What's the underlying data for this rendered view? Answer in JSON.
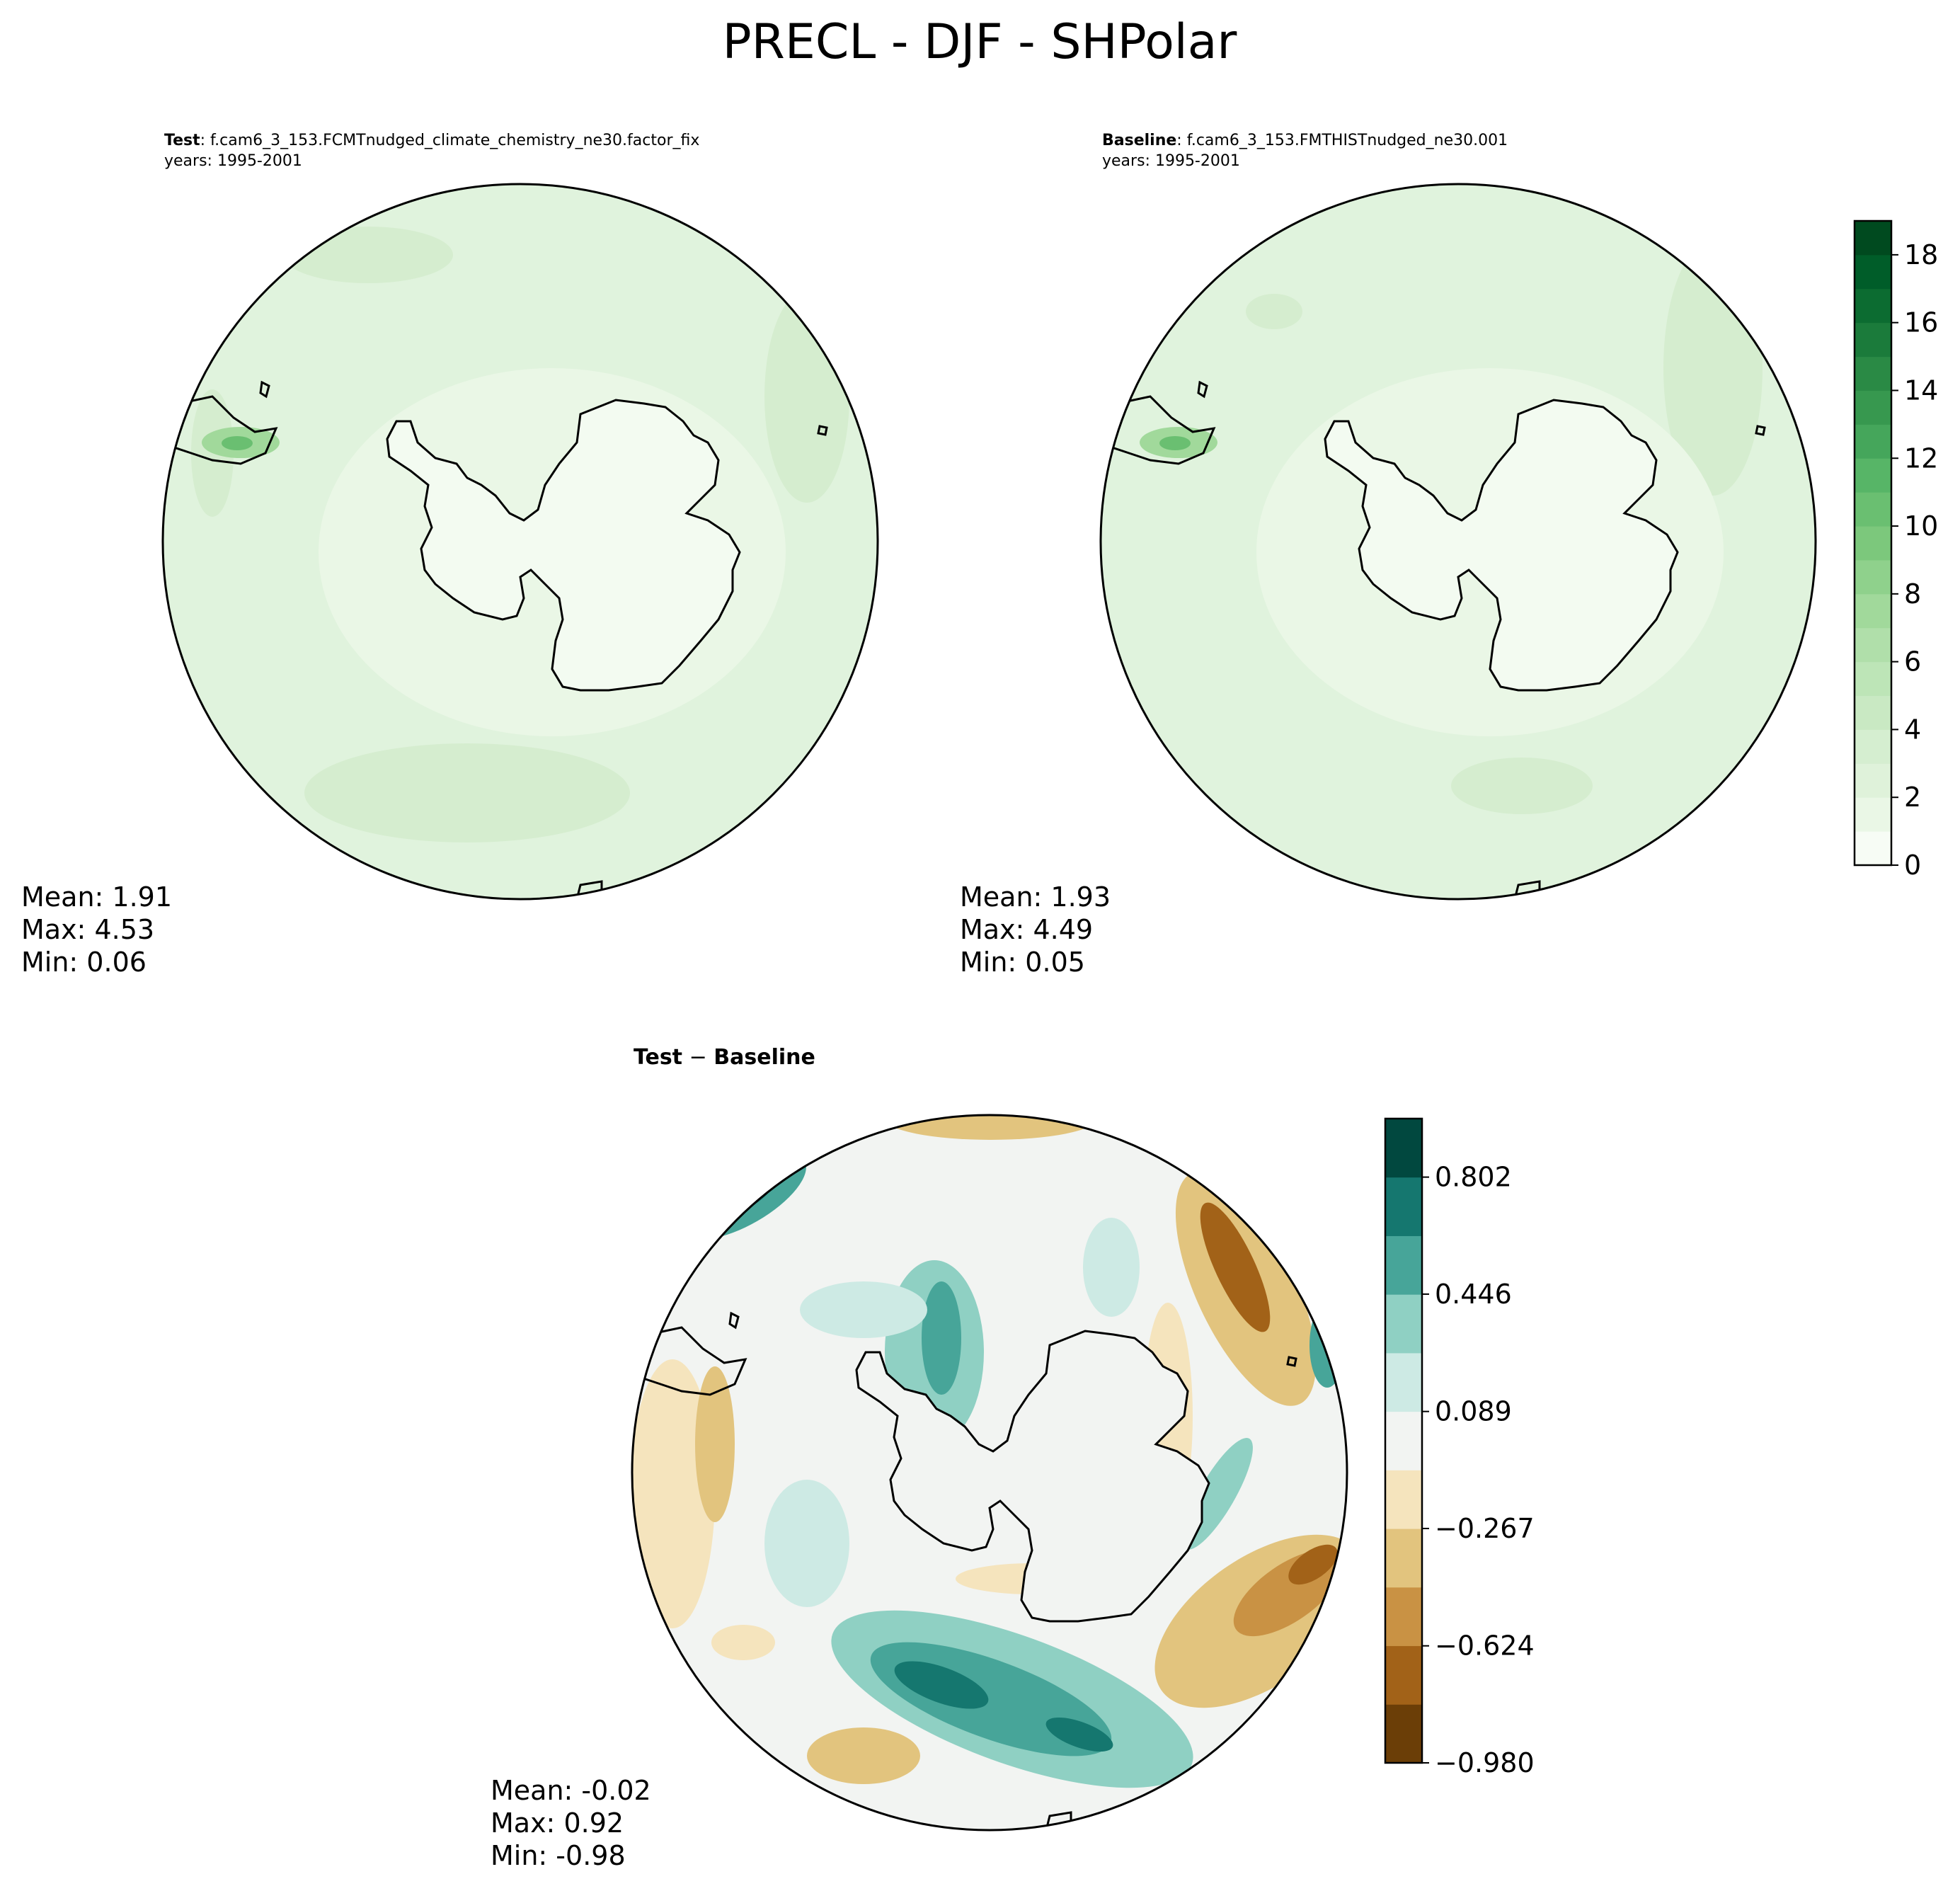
{
  "figure_title": "PRECL - DJF - SHPolar",
  "panels": {
    "test": {
      "label": "Test",
      "case": ": f.cam6_3_153.FCMTnudged_climate_chemistry_ne30.factor_fix",
      "years": "years: 1995-2001",
      "stats": {
        "mean": "Mean:  1.91",
        "max": "Max:  4.53",
        "min": "Min:  0.06"
      }
    },
    "baseline": {
      "label": "Baseline",
      "case": ": f.cam6_3_153.FMTHISTnudged_ne30.001",
      "years": "years: 1995-2001",
      "stats": {
        "mean": "Mean:  1.93",
        "max": "Max:  4.49",
        "min": "Min:  0.05"
      }
    },
    "diff": {
      "label_a": "Test",
      "label_sep": " − ",
      "label_b": "Baseline",
      "stats": {
        "mean": "Mean: -0.02",
        "max": "Max:  0.92",
        "min": "Min: -0.98"
      }
    }
  },
  "chart_data": [
    {
      "type": "heatmap",
      "title": "Test: f.cam6_3_153.FCMTnudged_climate_chemistry_ne30.factor_fix",
      "projection": "south-polar stereographic",
      "colormap": "Greens",
      "colorbar": {
        "range": [
          0,
          19
        ],
        "ticks": [
          "0",
          "2",
          "4",
          "6",
          "8",
          "10",
          "12",
          "14",
          "16",
          "18"
        ]
      },
      "stats": {
        "mean": 1.91,
        "max": 4.53,
        "min": 0.06
      }
    },
    {
      "type": "heatmap",
      "title": "Baseline: f.cam6_3_153.FMTHISTnudged_ne30.001",
      "projection": "south-polar stereographic",
      "colormap": "Greens",
      "colorbar": {
        "range": [
          0,
          19
        ],
        "ticks": [
          "0",
          "2",
          "4",
          "6",
          "8",
          "10",
          "12",
          "14",
          "16",
          "18"
        ]
      },
      "stats": {
        "mean": 1.93,
        "max": 4.49,
        "min": 0.05
      }
    },
    {
      "type": "heatmap",
      "title": "Test − Baseline",
      "projection": "south-polar stereographic",
      "colormap": "BrBG",
      "colorbar": {
        "range": [
          -0.98,
          0.98
        ],
        "ticks": [
          "−0.980",
          "−0.624",
          "−0.267",
          "0.089",
          "0.446",
          "0.802"
        ]
      },
      "stats": {
        "mean": -0.02,
        "max": 0.92,
        "min": -0.98
      }
    }
  ],
  "colors": {
    "greens": [
      "#f7fcf5",
      "#eaf7e6",
      "#dff2da",
      "#d5eed0",
      "#c9e9c3",
      "#bde5b7",
      "#b0dfaa",
      "#a1d99b",
      "#8fd18c",
      "#7cc87c",
      "#6abf71",
      "#57b567",
      "#45a65b",
      "#37984f",
      "#2a8a45",
      "#1b7b3b",
      "#0c6c31",
      "#005d29",
      "#004a1f"
    ],
    "brbg": [
      "#6b3e07",
      "#a26218",
      "#c99244",
      "#e2c47e",
      "#f5e4bd",
      "#f2f4f2",
      "#cdeae4",
      "#8fd0c3",
      "#47a599",
      "#15776f",
      "#01483f"
    ],
    "ocean_light": "#e0f3dd",
    "ocean_mid": "#d5edcf",
    "land": "#f3fbf1",
    "diff_neutral": "#f2f4f2"
  }
}
